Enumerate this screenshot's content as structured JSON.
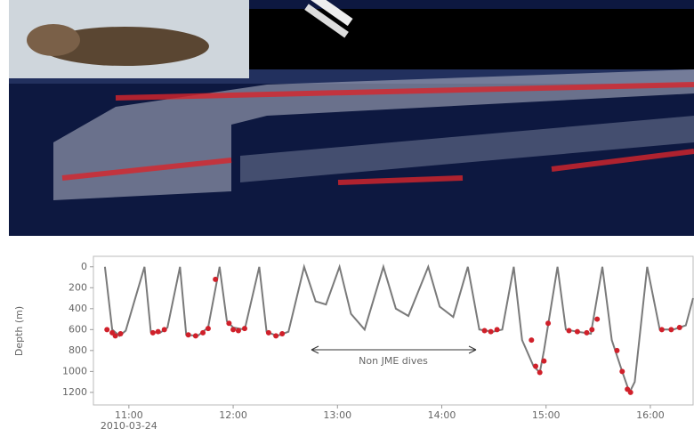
{
  "chart_data": {
    "type": "line",
    "y_label": "Depth (m)",
    "x_date_label": "2010-03-24",
    "annotation": "Non JME dives",
    "xlim": [
      10.66,
      16.41
    ],
    "xticks": [
      {
        "value": 11,
        "label": "11:00"
      },
      {
        "value": 12,
        "label": "12:00"
      },
      {
        "value": 13,
        "label": "13:00"
      },
      {
        "value": 14,
        "label": "14:00"
      },
      {
        "value": 15,
        "label": "15:00"
      },
      {
        "value": 16,
        "label": "16:00"
      }
    ],
    "ylim": [
      -100,
      1320
    ],
    "y_inverted": true,
    "yticks": [
      0,
      200,
      400,
      600,
      800,
      1000,
      1200
    ],
    "series": [
      {
        "color": "#7a7a7a",
        "x": [
          10.77,
          10.84,
          10.91,
          10.97,
          11.15,
          11.21,
          11.3,
          11.37,
          11.49,
          11.55,
          11.66,
          11.76,
          11.87,
          11.94,
          12.0,
          12.11,
          12.25,
          12.32,
          12.42,
          12.53,
          12.68,
          12.79,
          12.89,
          13.02,
          13.13,
          13.26,
          13.44,
          13.56,
          13.68,
          13.87,
          13.98,
          14.11,
          14.25,
          14.36,
          14.49,
          14.58,
          14.69,
          14.77,
          14.88,
          14.94,
          14.98,
          15.11,
          15.19,
          15.3,
          15.43,
          15.54,
          15.63,
          15.73,
          15.8,
          15.85,
          15.97,
          16.09,
          16.22,
          16.34,
          16.41
        ],
        "values": [
          0,
          600,
          660,
          610,
          0,
          620,
          630,
          580,
          0,
          650,
          660,
          580,
          0,
          520,
          580,
          600,
          0,
          620,
          660,
          620,
          0,
          330,
          360,
          0,
          450,
          600,
          0,
          400,
          470,
          0,
          380,
          480,
          0,
          600,
          620,
          600,
          0,
          700,
          950,
          1010,
          800,
          0,
          600,
          620,
          640,
          0,
          700,
          1000,
          1200,
          1100,
          0,
          600,
          600,
          560,
          300
        ]
      },
      {
        "color": "#d0202a",
        "marker": "dot",
        "x": [
          10.79,
          10.84,
          10.87,
          10.92,
          11.23,
          11.28,
          11.34,
          11.57,
          11.64,
          11.71,
          11.76,
          11.83,
          11.96,
          12.0,
          12.05,
          12.11,
          12.34,
          12.41,
          12.47,
          14.41,
          14.47,
          14.53,
          14.86,
          14.9,
          14.94,
          14.98,
          15.02,
          15.22,
          15.3,
          15.39,
          15.44,
          15.49,
          15.68,
          15.73,
          15.78,
          15.81,
          16.11,
          16.2,
          16.28
        ],
        "values": [
          600,
          630,
          660,
          640,
          630,
          620,
          600,
          650,
          660,
          630,
          590,
          120,
          540,
          600,
          610,
          590,
          630,
          660,
          640,
          610,
          620,
          600,
          700,
          950,
          1010,
          900,
          540,
          610,
          620,
          630,
          600,
          500,
          800,
          1000,
          1170,
          1200,
          600,
          600,
          580
        ]
      }
    ]
  }
}
